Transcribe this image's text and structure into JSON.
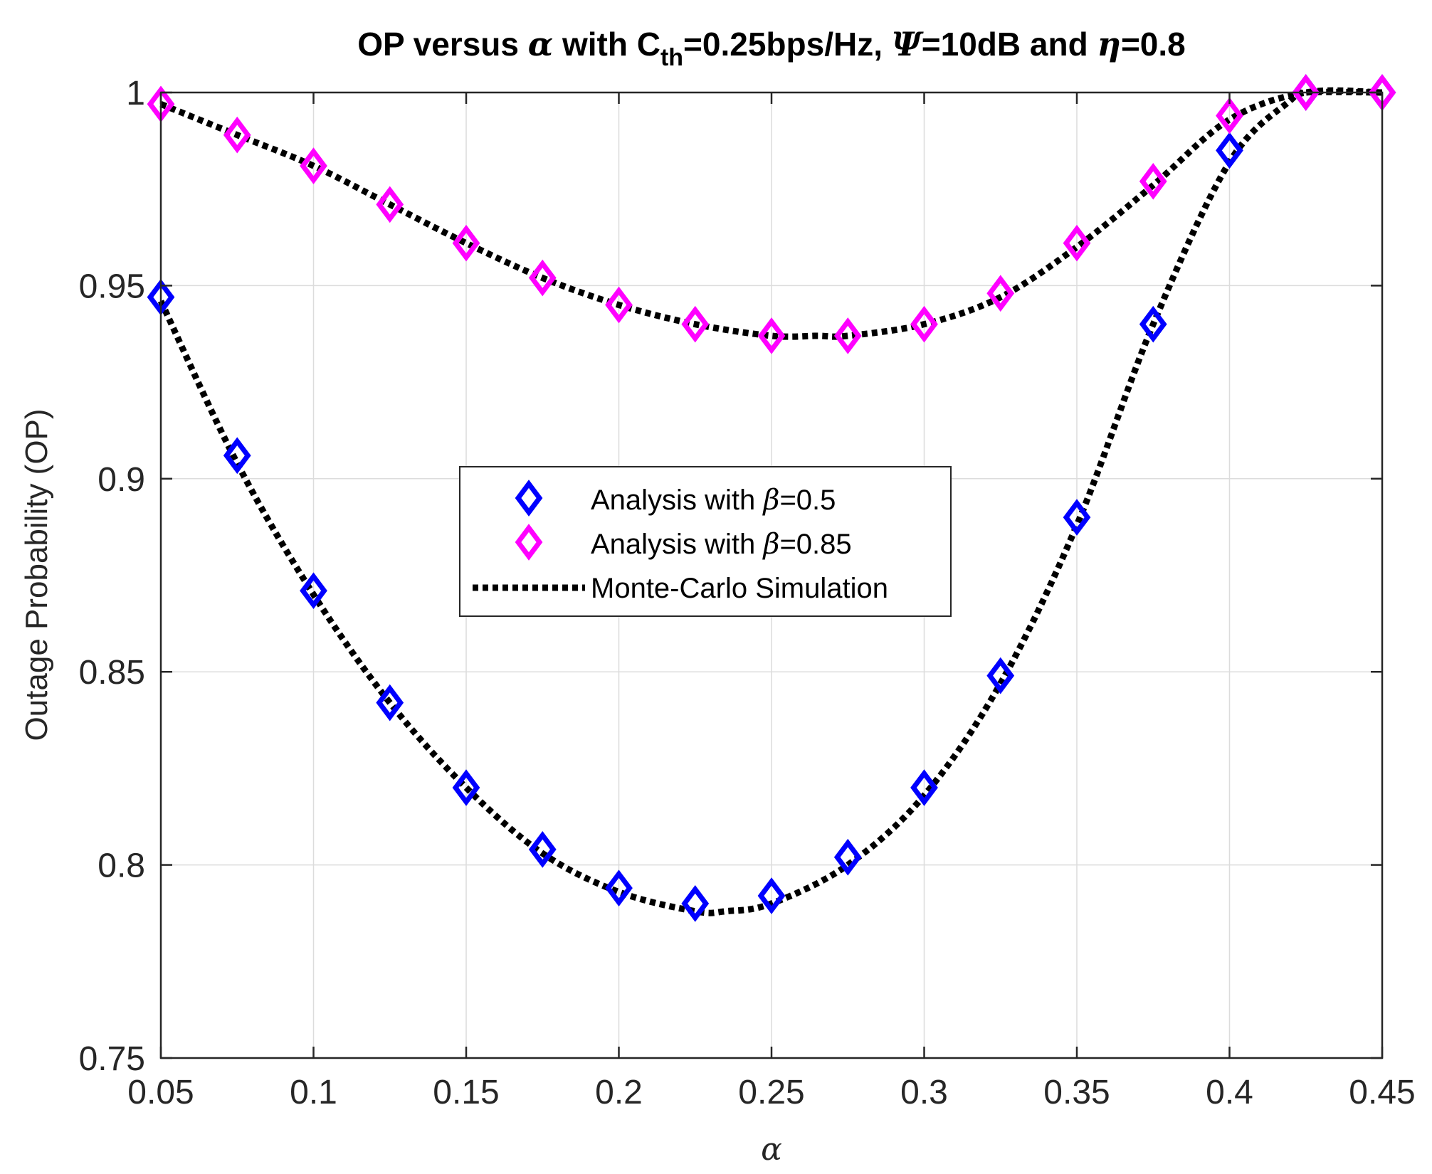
{
  "chart_data": {
    "type": "line",
    "title": {
      "prefix": "OP versus",
      "alpha": "α",
      "with": "with C",
      "sub": "th",
      "mid": "=0.25bps/Hz,",
      "psi": "Ψ",
      "mid2": "=10dB and",
      "eta": "η",
      "suffix": "=0.8"
    },
    "xlabel": "α",
    "ylabel": "Outage Probability (OP)",
    "xlim": [
      0.05,
      0.45
    ],
    "ylim": [
      0.75,
      1.0
    ],
    "xticks": [
      0.05,
      0.1,
      0.15,
      0.2,
      0.25,
      0.3,
      0.35,
      0.4,
      0.45
    ],
    "xtick_labels": [
      "0.05",
      "0.1",
      "0.15",
      "0.2",
      "0.25",
      "0.3",
      "0.35",
      "0.4",
      "0.45"
    ],
    "yticks": [
      0.75,
      0.8,
      0.85,
      0.9,
      0.95,
      1.0
    ],
    "ytick_labels": [
      "0.75",
      "0.8",
      "0.85",
      "0.9",
      "0.95",
      "1"
    ],
    "grid": true,
    "legend_position": "center",
    "x": [
      0.05,
      0.075,
      0.1,
      0.125,
      0.15,
      0.175,
      0.2,
      0.225,
      0.25,
      0.275,
      0.3,
      0.325,
      0.35,
      0.375,
      0.4,
      0.425,
      0.45
    ],
    "series": [
      {
        "name": "Analysis with β=0.5",
        "legend_prefix": "Analysis with ",
        "legend_beta": "β",
        "legend_suffix": "=0.5",
        "marker": "diamond",
        "color": "#0000ff",
        "values": [
          0.947,
          0.906,
          0.871,
          0.842,
          0.82,
          0.804,
          0.794,
          0.79,
          0.792,
          0.802,
          0.82,
          0.849,
          0.89,
          0.94,
          0.985,
          1.0,
          1.0
        ]
      },
      {
        "name": "Analysis with β=0.85",
        "legend_prefix": "Analysis with ",
        "legend_beta": "β",
        "legend_suffix": "=0.85",
        "marker": "diamond",
        "color": "#ff00ff",
        "values": [
          0.997,
          0.989,
          0.981,
          0.971,
          0.961,
          0.952,
          0.945,
          0.94,
          0.937,
          0.937,
          0.94,
          0.948,
          0.961,
          0.977,
          0.994,
          1.0,
          1.0
        ]
      },
      {
        "name": "Monte-Carlo Simulation",
        "legend_label": "Monte-Carlo Simulation",
        "style": "dotted",
        "color": "#000000",
        "curves": [
          {
            "x": [
              0.05,
              0.075,
              0.1,
              0.125,
              0.15,
              0.175,
              0.2,
              0.225,
              0.235,
              0.25,
              0.275,
              0.3,
              0.325,
              0.35,
              0.375,
              0.4,
              0.42,
              0.425,
              0.45
            ],
            "values": [
              0.946,
              0.904,
              0.87,
              0.842,
              0.82,
              0.803,
              0.793,
              0.788,
              0.788,
              0.79,
              0.8,
              0.818,
              0.847,
              0.888,
              0.94,
              0.982,
              0.998,
              1.0,
              1.0
            ]
          },
          {
            "x": [
              0.05,
              0.075,
              0.1,
              0.125,
              0.15,
              0.175,
              0.2,
              0.225,
              0.25,
              0.265,
              0.275,
              0.3,
              0.325,
              0.35,
              0.375,
              0.4,
              0.425,
              0.45
            ],
            "values": [
              0.997,
              0.989,
              0.981,
              0.971,
              0.961,
              0.952,
              0.945,
              0.94,
              0.937,
              0.937,
              0.937,
              0.94,
              0.947,
              0.96,
              0.976,
              0.993,
              1.0,
              1.0
            ]
          }
        ]
      }
    ]
  }
}
